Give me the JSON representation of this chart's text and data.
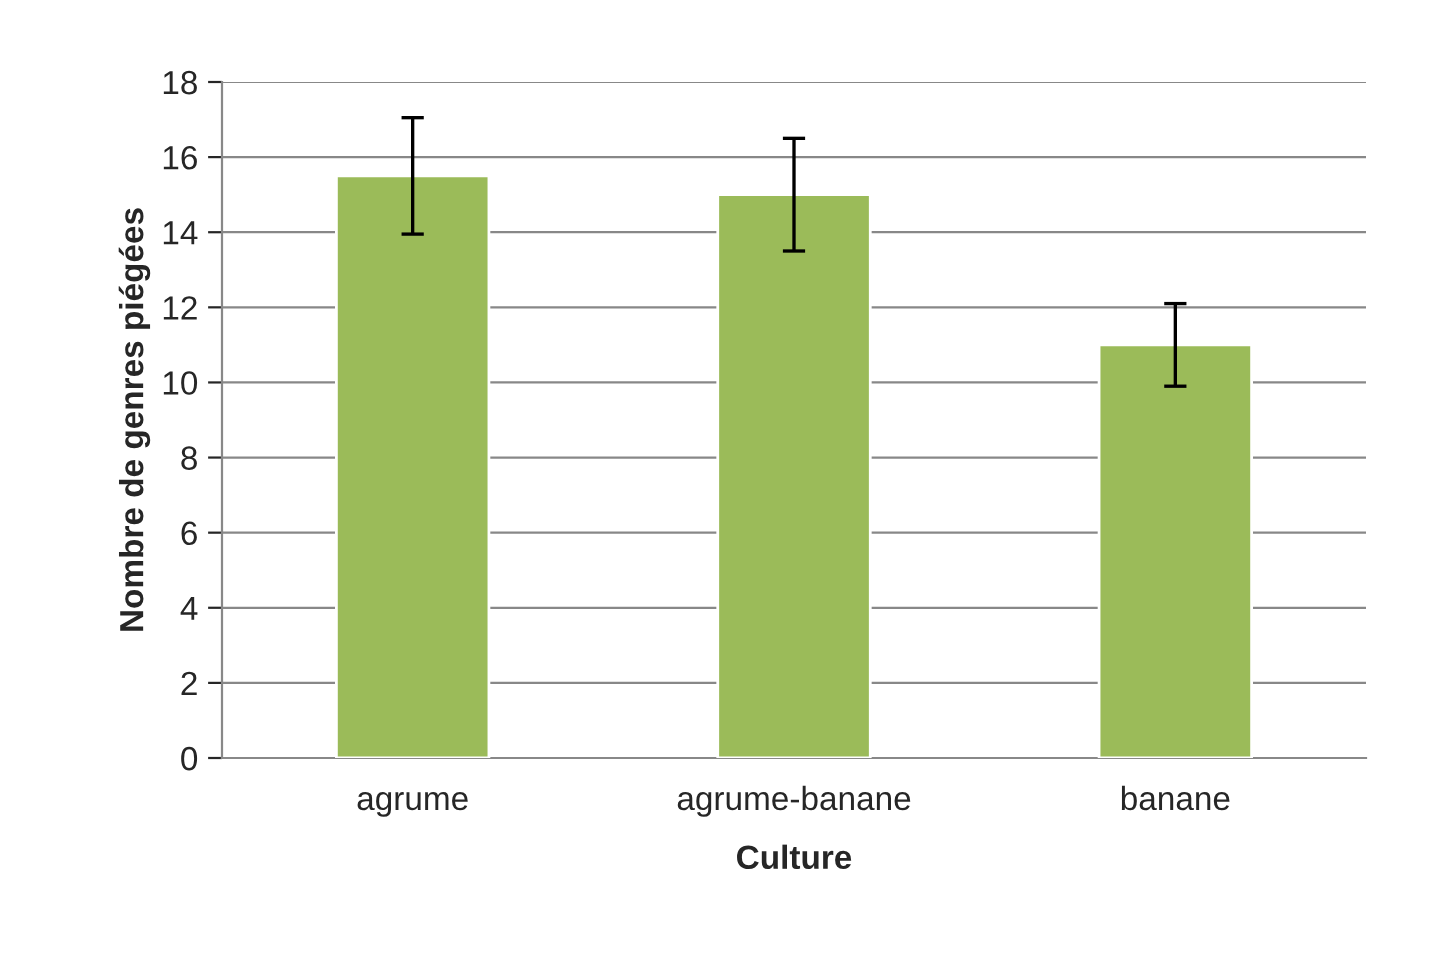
{
  "chart_data": {
    "type": "bar",
    "xlabel": "Culture",
    "ylabel": "Nombre de genres piégées",
    "categories": [
      "agrume",
      "agrume-banane",
      "banane"
    ],
    "series": [
      {
        "color": "#9bbb59",
        "values": [
          15.5,
          15,
          11
        ],
        "errors": [
          1.55,
          1.5,
          1.1
        ]
      }
    ],
    "ylim": [
      0,
      18
    ],
    "yticks": [
      0,
      2,
      4,
      6,
      8,
      10,
      12,
      14,
      16,
      18
    ],
    "grid": "y",
    "legend": false
  }
}
